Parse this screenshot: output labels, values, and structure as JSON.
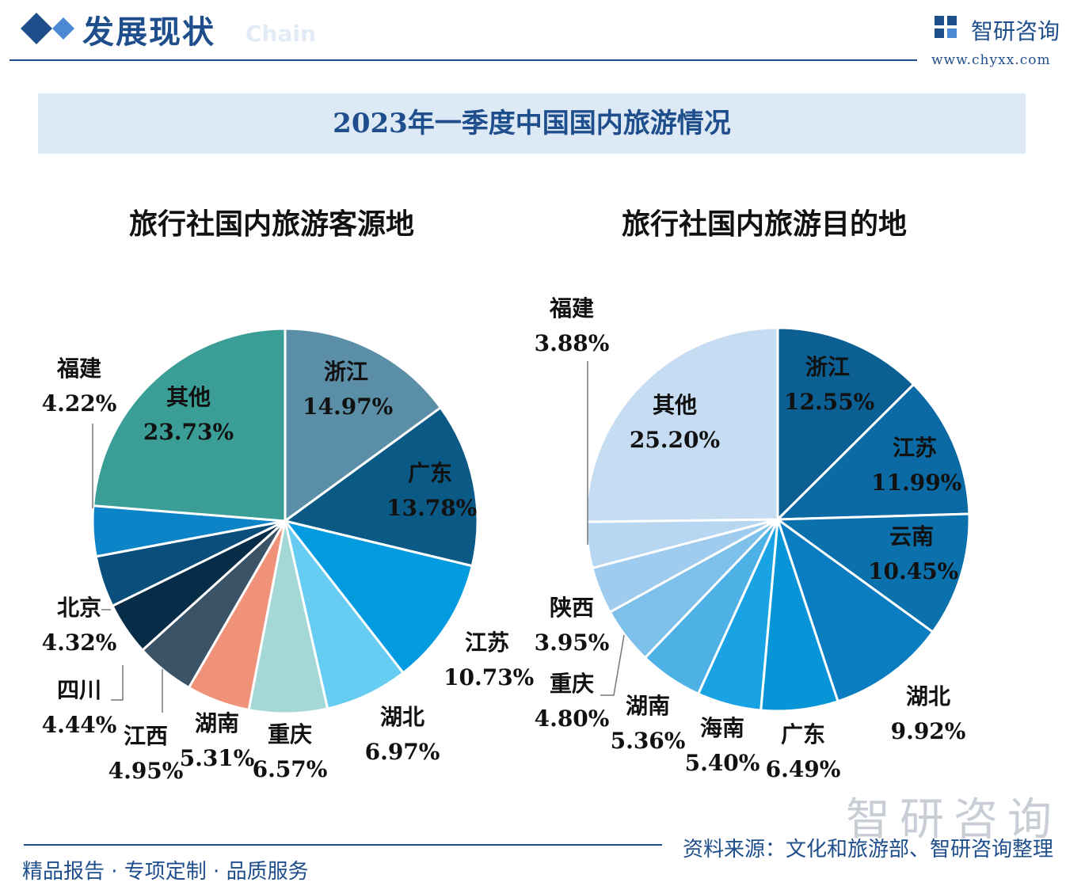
{
  "header": {
    "title": "发展现状",
    "ghost_text": "Chain"
  },
  "brand": {
    "name": "智研咨询",
    "url": "www.chyxx.com"
  },
  "banner_title": "2023年一季度中国国内旅游情况",
  "watermark": "智研咨询",
  "footer": {
    "left": "精品报告 · 专项定制 · 品质服务",
    "source": "资料来源：文化和旅游部、智研咨询整理"
  },
  "colors": {
    "accent": "#1f4e8c",
    "banner_bg": "#dde9f4"
  },
  "chart_data": [
    {
      "type": "pie",
      "title": "旅行社国内旅游客源地",
      "slices": [
        {
          "name": "浙江",
          "value": 14.97,
          "label": "14.97%",
          "color": "#5b8fa8"
        },
        {
          "name": "广东",
          "value": 13.78,
          "label": "13.78%",
          "color": "#0b5a86"
        },
        {
          "name": "江苏",
          "value": 10.73,
          "label": "10.73%",
          "color": "#039be0"
        },
        {
          "name": "湖北",
          "value": 6.97,
          "label": "6.97%",
          "color": "#66ccf2"
        },
        {
          "name": "重庆",
          "value": 6.57,
          "label": "6.57%",
          "color": "#a4d8d6"
        },
        {
          "name": "湖南",
          "value": 5.31,
          "label": "5.31%",
          "color": "#f0927a"
        },
        {
          "name": "江西",
          "value": 4.95,
          "label": "4.95%",
          "color": "#3a5366"
        },
        {
          "name": "四川",
          "value": 4.44,
          "label": "4.44%",
          "color": "#072c47"
        },
        {
          "name": "北京",
          "value": 4.32,
          "label": "4.32%",
          "color": "#0a4f7c"
        },
        {
          "name": "福建",
          "value": 4.22,
          "label": "4.22%",
          "color": "#0d84c8"
        },
        {
          "name": "其他",
          "value": 23.73,
          "label": "23.73%",
          "color": "#3a9e96"
        }
      ]
    },
    {
      "type": "pie",
      "title": "旅行社国内旅游目的地",
      "slices": [
        {
          "name": "浙江",
          "value": 12.55,
          "label": "12.55%",
          "color": "#0b5f93"
        },
        {
          "name": "江苏",
          "value": 11.99,
          "label": "11.99%",
          "color": "#0b6aa4"
        },
        {
          "name": "云南",
          "value": 10.45,
          "label": "10.45%",
          "color": "#0b71ad"
        },
        {
          "name": "湖北",
          "value": 9.92,
          "label": "9.92%",
          "color": "#0a7cc0"
        },
        {
          "name": "广东",
          "value": 6.49,
          "label": "6.49%",
          "color": "#0895d8"
        },
        {
          "name": "海南",
          "value": 5.4,
          "label": "5.40%",
          "color": "#1aa3e4"
        },
        {
          "name": "湖南",
          "value": 5.36,
          "label": "5.36%",
          "color": "#4eb1e6"
        },
        {
          "name": "重庆",
          "value": 4.8,
          "label": "4.80%",
          "color": "#7dc0ea"
        },
        {
          "name": "陕西",
          "value": 3.95,
          "label": "3.95%",
          "color": "#9ecbee"
        },
        {
          "name": "福建",
          "value": 3.88,
          "label": "3.88%",
          "color": "#b6d6f1"
        },
        {
          "name": "其他",
          "value": 25.2,
          "label": "25.20%",
          "color": "#c6dcf2"
        }
      ]
    }
  ]
}
